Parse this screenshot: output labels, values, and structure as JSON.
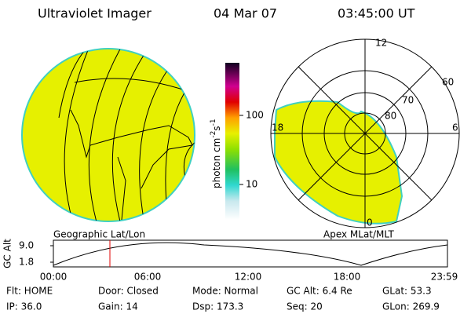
{
  "header": {
    "title": "Ultraviolet Imager",
    "date": "04 Mar 07",
    "time": "03:45:00 UT"
  },
  "colorbar": {
    "label": "photon cm",
    "sup1": "-2",
    "unit2": "s",
    "sup2": "-1",
    "ticks": [
      "100",
      "10"
    ]
  },
  "polar": {
    "labels": [
      "12",
      "60",
      "70",
      "80",
      "18",
      "6",
      "0"
    ]
  },
  "panels": {
    "left": "Geographic Lat/Lon",
    "right": "Apex MLat/MLT"
  },
  "timeline": {
    "ylabel": "GC Alt",
    "yticks": [
      "9.0",
      "1.8"
    ],
    "xticks": [
      "00:00",
      "06:00",
      "12:00",
      "18:00",
      "23:59"
    ]
  },
  "info": {
    "rows": [
      [
        "Flt: HOME",
        "Door: Closed",
        "Mode: Normal",
        "GC Alt: 6.4 Re",
        "GLat: 53.3"
      ],
      [
        "IP: 36.0",
        "Gain: 14",
        "Dsp: 173.3",
        "Seq: 20",
        "GLon: 269.9"
      ]
    ]
  }
}
